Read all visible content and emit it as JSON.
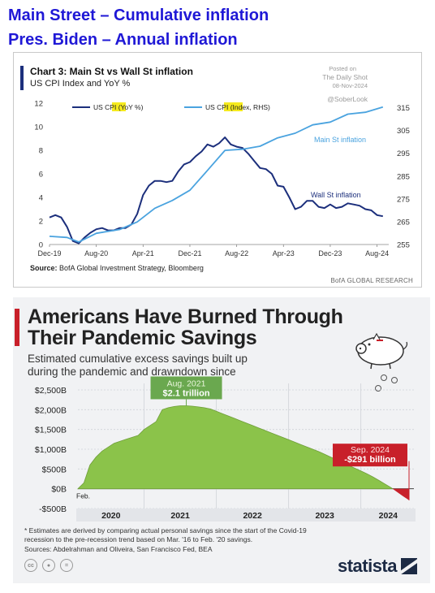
{
  "headline": {
    "line1": "Main Street – Cumulative inflation",
    "line2": "Pres. Biden – Annual inflation"
  },
  "panel1": {
    "title": "Chart 3: Main St vs Wall St inflation",
    "subtitle": "US CPI Index and YoY %",
    "posted_on": "Posted on",
    "posted_by": "The Daily Shot",
    "posted_date": "08-Nov-2024",
    "handle": "@SoberLook",
    "source_label": "Source:",
    "source_text": " BofA Global Investment Strategy, Bloomberg",
    "brand": "BofA GLOBAL RESEARCH"
  },
  "panel2": {
    "title_line1": "Americans Have Burned Through",
    "title_line2": "Their Pandemic Savings",
    "subtitle_line1": "Estimated cumulative excess savings built up",
    "subtitle_line2": "during the pandemic and drawndown since",
    "footnote1": "* Estimates are derived by comparing actual personal savings since the start of the Covid-19",
    "footnote2": "recession to the pre-recession trend based on Mar. '16 to Feb. '20 savings.",
    "sources": "Sources: Abdelrahman and Oliveira, San Francisco Fed, BEA",
    "logo": "statista",
    "cc_icons": [
      "creative-commons-icon",
      "attribution-icon",
      "no-derivatives-icon"
    ]
  },
  "chart_data": [
    {
      "type": "line",
      "title": "Chart 3: Main St vs Wall St inflation",
      "subtitle": "US CPI Index and YoY %",
      "x_tick_labels": [
        "Dec-19",
        "Aug-20",
        "Apr-21",
        "Dec-21",
        "Aug-22",
        "Apr-23",
        "Dec-23",
        "Aug-24"
      ],
      "x_range": [
        "2019-12",
        "2024-10"
      ],
      "y_left": {
        "ticks": [
          0,
          2,
          4,
          6,
          8,
          10,
          12
        ],
        "range": [
          0,
          12
        ]
      },
      "y_right": {
        "ticks": [
          255,
          265,
          275,
          285,
          295,
          305,
          315
        ],
        "range": [
          255,
          317
        ]
      },
      "legend": {
        "placement": "top",
        "entries": [
          {
            "prefix": "US CPI (",
            "highlight": "YoY",
            "suffix": " %)",
            "color": "#1c2f7c"
          },
          {
            "prefix": "US CPI (",
            "highlight": "Index",
            "suffix": ", RHS)",
            "color": "#4aa3df"
          }
        ]
      },
      "annotations": [
        {
          "text": "Main St inflation",
          "color": "#4aa3df",
          "near": "index series, 2023-12"
        },
        {
          "text": "Wall St inflation",
          "color": "#1c2f7c",
          "near": "yoy series, 2023-12"
        }
      ],
      "series": [
        {
          "axis": "left",
          "color": "#1c2f7c",
          "x": [
            "2019-12",
            "2020-01",
            "2020-02",
            "2020-03",
            "2020-04",
            "2020-05",
            "2020-06",
            "2020-07",
            "2020-08",
            "2020-09",
            "2020-10",
            "2020-11",
            "2020-12",
            "2021-01",
            "2021-02",
            "2021-03",
            "2021-04",
            "2021-05",
            "2021-06",
            "2021-07",
            "2021-08",
            "2021-09",
            "2021-10",
            "2021-11",
            "2021-12",
            "2022-01",
            "2022-02",
            "2022-03",
            "2022-04",
            "2022-05",
            "2022-06",
            "2022-07",
            "2022-08",
            "2022-09",
            "2022-10",
            "2022-11",
            "2022-12",
            "2023-01",
            "2023-02",
            "2023-03",
            "2023-04",
            "2023-05",
            "2023-06",
            "2023-07",
            "2023-08",
            "2023-09",
            "2023-10",
            "2023-11",
            "2023-12",
            "2024-01",
            "2024-02",
            "2024-03",
            "2024-04",
            "2024-05",
            "2024-06",
            "2024-07",
            "2024-08",
            "2024-09"
          ],
          "values": [
            2.3,
            2.5,
            2.3,
            1.5,
            0.3,
            0.1,
            0.6,
            1.0,
            1.3,
            1.4,
            1.2,
            1.2,
            1.4,
            1.4,
            1.7,
            2.6,
            4.2,
            5.0,
            5.4,
            5.4,
            5.3,
            5.4,
            6.2,
            6.8,
            7.0,
            7.5,
            7.9,
            8.5,
            8.3,
            8.6,
            9.1,
            8.5,
            8.3,
            8.2,
            7.7,
            7.1,
            6.5,
            6.4,
            6.0,
            5.0,
            4.9,
            4.0,
            3.0,
            3.2,
            3.7,
            3.7,
            3.2,
            3.1,
            3.4,
            3.1,
            3.2,
            3.5,
            3.4,
            3.3,
            3.0,
            2.9,
            2.5,
            2.4
          ]
        },
        {
          "axis": "right",
          "color": "#4aa3df",
          "x": [
            "2019-12",
            "2020-03",
            "2020-05",
            "2020-08",
            "2020-12",
            "2021-03",
            "2021-06",
            "2021-09",
            "2021-12",
            "2022-03",
            "2022-06",
            "2022-09",
            "2022-12",
            "2023-03",
            "2023-06",
            "2023-09",
            "2023-12",
            "2024-03",
            "2024-06",
            "2024-09"
          ],
          "values": [
            258.6,
            258.1,
            256.1,
            259.9,
            261.6,
            264.9,
            270.9,
            274.3,
            278.8,
            287.5,
            296.3,
            296.8,
            298.1,
            301.8,
            303.8,
            307.5,
            308.7,
            312.2,
            313.0,
            315.3
          ]
        }
      ]
    },
    {
      "type": "area",
      "title": "Americans Have Burned Through Their Pandemic Savings",
      "subtitle": "Estimated cumulative excess savings built up during the pandemic and drawndown since",
      "y_tick_labels": [
        "-$500B",
        "$0B",
        "$500B",
        "$1,000B",
        "$1,500B",
        "$2,000B",
        "$2,500B"
      ],
      "y_ticks": [
        -500,
        0,
        500,
        1000,
        1500,
        2000,
        2500
      ],
      "y_range": [
        -500,
        2500
      ],
      "x_tick_labels": [
        "2020",
        "2021",
        "2022",
        "2023",
        "2024"
      ],
      "x_range": [
        "2020-02",
        "2024-09"
      ],
      "start_label": "Feb.",
      "color_positive": "#8bc34a",
      "color_negative": "#c8202a",
      "callouts": [
        {
          "line1": "Aug. 2021",
          "line2": "$2.1 trillion",
          "color": "#6aa84f",
          "at": "2021-08"
        },
        {
          "line1": "Sep. 2024",
          "line2": "-$291 billion",
          "color": "#c8202a",
          "at": "2024-09"
        }
      ],
      "series": [
        {
          "x": [
            "2020-02",
            "2020-03",
            "2020-04",
            "2020-05",
            "2020-06",
            "2020-07",
            "2020-08",
            "2020-09",
            "2020-10",
            "2020-11",
            "2020-12",
            "2021-01",
            "2021-02",
            "2021-03",
            "2021-04",
            "2021-05",
            "2021-06",
            "2021-07",
            "2021-08",
            "2021-09",
            "2021-10",
            "2021-11",
            "2021-12",
            "2022-01",
            "2022-02",
            "2022-03",
            "2022-04",
            "2022-05",
            "2022-06",
            "2022-07",
            "2022-08",
            "2022-09",
            "2022-10",
            "2022-11",
            "2022-12",
            "2023-01",
            "2023-02",
            "2023-03",
            "2023-04",
            "2023-05",
            "2023-06",
            "2023-07",
            "2023-08",
            "2023-09",
            "2023-10",
            "2023-11",
            "2023-12",
            "2024-01",
            "2024-02",
            "2024-03",
            "2024-04",
            "2024-05",
            "2024-06",
            "2024-07",
            "2024-08",
            "2024-09"
          ],
          "values": [
            0,
            150,
            600,
            800,
            950,
            1050,
            1150,
            1200,
            1250,
            1300,
            1350,
            1500,
            1600,
            1700,
            2000,
            2050,
            2080,
            2100,
            2100,
            2090,
            2070,
            2050,
            2020,
            1960,
            1900,
            1840,
            1780,
            1720,
            1660,
            1600,
            1540,
            1480,
            1420,
            1360,
            1300,
            1240,
            1180,
            1120,
            1060,
            1000,
            940,
            870,
            800,
            730,
            660,
            590,
            520,
            450,
            380,
            300,
            210,
            120,
            30,
            -80,
            -190,
            -291
          ]
        }
      ]
    }
  ]
}
